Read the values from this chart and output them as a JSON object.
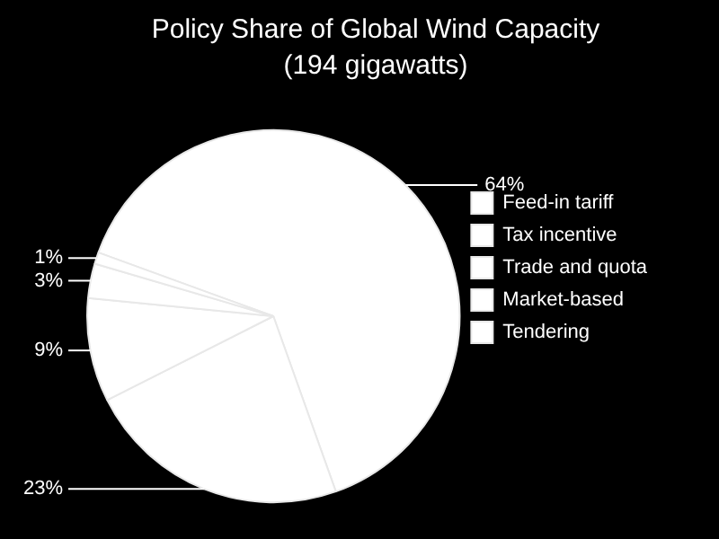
{
  "chart_data": {
    "type": "pie",
    "title": "Policy Share of Global Wind Capacity",
    "subtitle": "(194 gigawatts)",
    "categories": [
      "Feed-in tariff",
      "Tax incentive",
      "Trade and quota",
      "Market-based",
      "Tendering"
    ],
    "values": [
      64,
      23,
      9,
      3,
      1
    ],
    "value_labels": [
      "64%",
      "23%",
      "9%",
      "3%",
      "1%"
    ],
    "colors": [
      "#ffffff",
      "#ffffff",
      "#ffffff",
      "#ffffff",
      "#ffffff"
    ],
    "legend": "right"
  }
}
